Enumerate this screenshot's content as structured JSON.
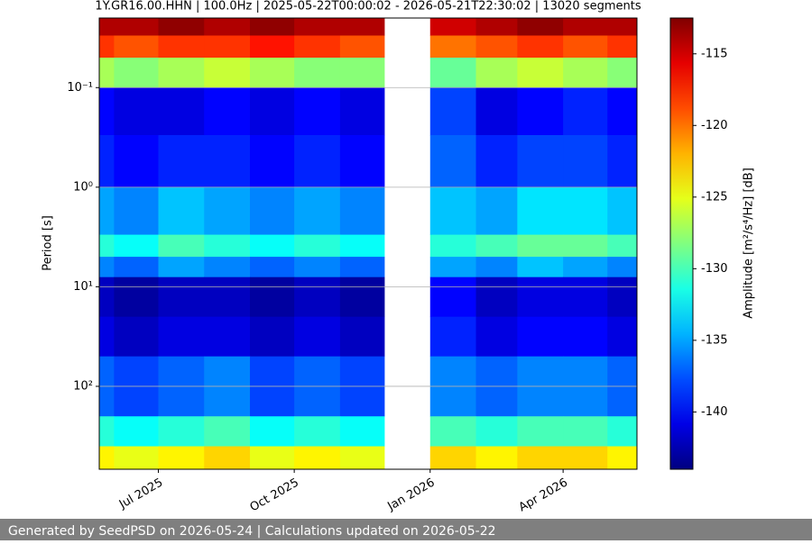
{
  "chart_data": {
    "type": "heatmap",
    "title": "1Y.GR16.00.HHN | 100.0Hz | 2025-05-22T00:00:02 - 2026-05-21T22:30:02 | 13020 segments",
    "y_label": "Period [s]",
    "colorbar_label": "Amplitude [m²/s⁴/Hz] [dB]",
    "x": [
      "2025-05",
      "2025-06",
      "2025-07",
      "2025-08",
      "2025-09",
      "2025-10",
      "2025-11",
      "2025-12",
      "2026-01",
      "2026-02",
      "2026-03",
      "2026-04",
      "2026-05"
    ],
    "xlim": [
      "2025-05-22",
      "2026-05-21"
    ],
    "xticks": [
      {
        "value": "2025-07",
        "label": "Jul 2025"
      },
      {
        "value": "2025-10",
        "label": "Oct 2025"
      },
      {
        "value": "2026-01",
        "label": "Jan 2026"
      },
      {
        "value": "2026-04",
        "label": "Apr 2026"
      }
    ],
    "y_edges": [
      0.02,
      0.03,
      0.05,
      0.1,
      0.3,
      1,
      3,
      5,
      8,
      20,
      50,
      200,
      400,
      680
    ],
    "ylim": [
      0.02,
      680
    ],
    "y_log": true,
    "y_inverted": true,
    "yticks": [
      {
        "value": 0.1,
        "label": "10⁻¹"
      },
      {
        "value": 1,
        "label": "10⁰"
      },
      {
        "value": 10,
        "label": "10¹"
      },
      {
        "value": 100,
        "label": "10²"
      }
    ],
    "grid": true,
    "colormap": "jet",
    "clim": [
      -144,
      -112.5
    ],
    "colorbar_ticks": [
      -115,
      -120,
      -125,
      -130,
      -135,
      -140
    ],
    "z": [
      [
        -114,
        -114,
        -113,
        -114,
        -113,
        -114,
        -114,
        null,
        -115,
        -114,
        -113,
        -114,
        -114
      ],
      [
        -118,
        -119,
        -118,
        -118,
        -117,
        -118,
        -119,
        null,
        -120,
        -119,
        -118,
        -119,
        -118
      ],
      [
        -127,
        -128,
        -127,
        -126,
        -127,
        -128,
        -128,
        null,
        -129,
        -127,
        -126,
        -127,
        -128
      ],
      [
        -140,
        -141,
        -141,
        -140,
        -141,
        -140,
        -141,
        null,
        -138,
        -141,
        -140,
        -139,
        -140
      ],
      [
        -139,
        -140,
        -139,
        -139,
        -140,
        -139,
        -140,
        null,
        -137,
        -139,
        -138,
        -138,
        -139
      ],
      [
        -135,
        -136,
        -134,
        -135,
        -136,
        -135,
        -136,
        null,
        -134,
        -135,
        -133,
        -133,
        -134
      ],
      [
        -131,
        -132,
        -130,
        -131,
        -132,
        -131,
        -132,
        null,
        -131,
        -130,
        -129,
        -129,
        -130
      ],
      [
        -136,
        -137,
        -135,
        -136,
        -137,
        -136,
        -137,
        null,
        -135,
        -136,
        -134,
        -135,
        -136
      ],
      [
        -142,
        -143,
        -142,
        -142,
        -143,
        -142,
        -143,
        null,
        -140,
        -142,
        -141,
        -141,
        -142
      ],
      [
        -141,
        -142,
        -141,
        -141,
        -142,
        -141,
        -142,
        null,
        -139,
        -141,
        -140,
        -140,
        -141
      ],
      [
        -137,
        -138,
        -137,
        -136,
        -138,
        -137,
        -138,
        null,
        -136,
        -137,
        -136,
        -136,
        -137
      ],
      [
        -131,
        -132,
        -131,
        -130,
        -132,
        -131,
        -132,
        null,
        -130,
        -131,
        -130,
        -130,
        -131
      ],
      [
        -124,
        -125,
        -124,
        -123,
        -125,
        -124,
        -125,
        null,
        -123,
        -124,
        -123,
        -123,
        -124
      ]
    ]
  },
  "footer": {
    "text": "Generated by SeedPSD on 2026-05-24 | Calculations updated on 2026-05-22"
  }
}
